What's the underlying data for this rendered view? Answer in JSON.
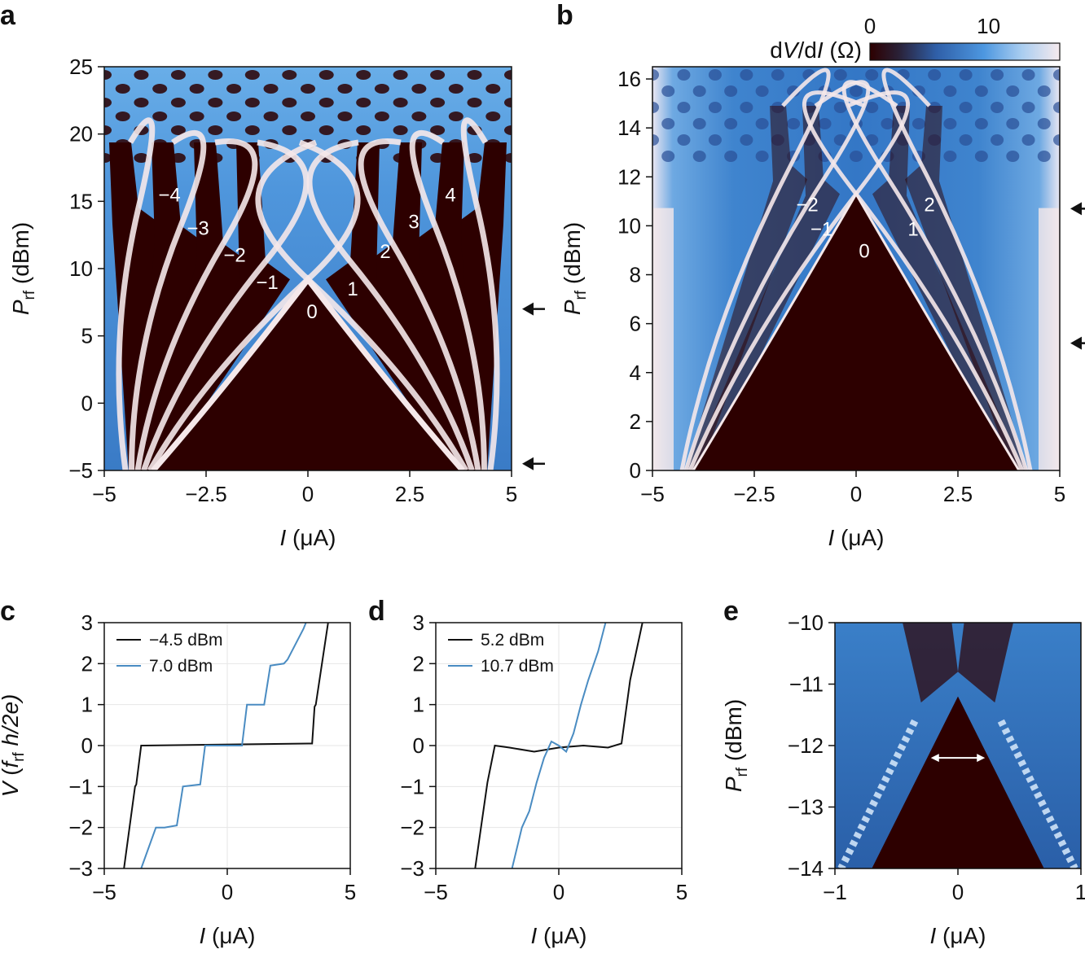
{
  "colors": {
    "dark": "#2d0000",
    "mid": "#3a7fc8",
    "light": "#5fa8e8",
    "white": "#f5e8ea",
    "trace_black": "#111111",
    "trace_blue": "#4a8cc2"
  },
  "chart_data": [
    {
      "id": "a",
      "type": "heatmap",
      "panel_label": "a",
      "xlabel_italic": "I",
      "xlabel_unit": "(μA)",
      "ylabel_main": "P",
      "ylabel_sub": "rf",
      "ylabel_unit": "(dBm)",
      "xlim": [
        -5,
        5
      ],
      "ylim": [
        -5,
        25
      ],
      "xticks": [
        -5,
        -2.5,
        0,
        2.5,
        5
      ],
      "xtick_labels": [
        "−5",
        "−2.5",
        "0",
        "2.5",
        "5"
      ],
      "yticks": [
        -5,
        0,
        5,
        10,
        15,
        20,
        25
      ],
      "ytick_labels": [
        "−5",
        "0",
        "5",
        "10",
        "15",
        "20",
        "25"
      ],
      "zero_step_boundary": {
        "apex": [
          0,
          9.2
        ],
        "base_left": [
          -3.8,
          -5
        ],
        "base_right": [
          3.8,
          -5
        ]
      },
      "step_labels": [
        {
          "text": "−4",
          "x": -3.4,
          "y": 15.0
        },
        {
          "text": "−3",
          "x": -2.7,
          "y": 12.5
        },
        {
          "text": "−2",
          "x": -1.8,
          "y": 10.5
        },
        {
          "text": "−1",
          "x": -1.0,
          "y": 8.5
        },
        {
          "text": "0",
          "x": 0.1,
          "y": 6.3
        },
        {
          "text": "1",
          "x": 1.1,
          "y": 8.0
        },
        {
          "text": "2",
          "x": 1.9,
          "y": 10.8
        },
        {
          "text": "3",
          "x": 2.6,
          "y": 13.0
        },
        {
          "text": "4",
          "x": 3.5,
          "y": 15.0
        }
      ],
      "arrows_at": [
        7.0,
        -4.5
      ]
    },
    {
      "id": "b",
      "type": "heatmap",
      "panel_label": "b",
      "xlabel_italic": "I",
      "xlabel_unit": "(μA)",
      "ylabel_main": "P",
      "ylabel_sub": "rf",
      "ylabel_unit": "(dBm)",
      "xlim": [
        -5,
        5
      ],
      "ylim": [
        0,
        16.5
      ],
      "xticks": [
        -5,
        -2.5,
        0,
        2.5,
        5
      ],
      "xtick_labels": [
        "−5",
        "−2.5",
        "0",
        "2.5",
        "5"
      ],
      "yticks": [
        0,
        2,
        4,
        6,
        8,
        10,
        12,
        14,
        16
      ],
      "ytick_labels": [
        "0",
        "2",
        "4",
        "6",
        "8",
        "10",
        "12",
        "14",
        "16"
      ],
      "zero_step_boundary": {
        "apex": [
          0,
          11.3
        ],
        "base_left": [
          -4.0,
          0
        ],
        "base_right": [
          4.0,
          0
        ]
      },
      "step_labels": [
        {
          "text": "−2",
          "x": -1.2,
          "y": 10.6
        },
        {
          "text": "−1",
          "x": -0.85,
          "y": 9.6
        },
        {
          "text": "0",
          "x": 0.2,
          "y": 8.7
        },
        {
          "text": "1",
          "x": 1.4,
          "y": 9.6
        },
        {
          "text": "2",
          "x": 1.8,
          "y": 10.6
        }
      ],
      "arrows_at": [
        10.7,
        5.2
      ],
      "colorbar": {
        "label_prefix": "d",
        "label_v": "V",
        "label_mid": "/d",
        "label_i": "I",
        "label_unit": "(Ω)",
        "ticks": [
          0,
          10
        ],
        "tick_labels": [
          "0",
          "10"
        ],
        "range": [
          0,
          16
        ]
      }
    },
    {
      "id": "c",
      "type": "line",
      "panel_label": "c",
      "xlabel_italic": "I",
      "xlabel_unit": "(μA)",
      "ylabel_main": "V",
      "ylabel_paren_open": "(",
      "ylabel_f": "f",
      "ylabel_sub": "rf",
      "ylabel_tail": "h/2e)",
      "xlim": [
        -5,
        5
      ],
      "ylim": [
        -3,
        3
      ],
      "xticks": [
        -5,
        0,
        5
      ],
      "xtick_labels": [
        "−5",
        "0",
        "5"
      ],
      "yticks": [
        -3,
        -2,
        -1,
        0,
        1,
        2,
        3
      ],
      "ytick_labels": [
        "−3",
        "−2",
        "−1",
        "0",
        "1",
        "2",
        "3"
      ],
      "series": [
        {
          "name": "−4.5 dBm",
          "color": "#111111",
          "x": [
            -4.2,
            -3.75,
            -3.7,
            -3.5,
            -3.4,
            3.3,
            3.45,
            3.55,
            3.6,
            4.1
          ],
          "y": [
            -3.0,
            -1.0,
            -0.95,
            0.0,
            0.0,
            0.05,
            0.05,
            0.95,
            1.0,
            3.0
          ]
        },
        {
          "name": "7.0 dBm",
          "color": "#4a8cc2",
          "x": [
            -3.5,
            -2.9,
            -2.55,
            -2.05,
            -1.8,
            -1.1,
            -0.9,
            0.6,
            0.8,
            1.5,
            1.75,
            2.3,
            2.45,
            3.1,
            3.2
          ],
          "y": [
            -3.0,
            -2.0,
            -2.0,
            -1.95,
            -1.0,
            -0.95,
            0.0,
            0.0,
            1.0,
            1.0,
            1.95,
            2.0,
            2.1,
            2.85,
            3.0
          ]
        }
      ]
    },
    {
      "id": "d",
      "type": "line",
      "panel_label": "d",
      "xlabel_italic": "I",
      "xlabel_unit": "(μA)",
      "xlim": [
        -5,
        5
      ],
      "ylim": [
        -3,
        3
      ],
      "xticks": [
        -5,
        0,
        5
      ],
      "xtick_labels": [
        "−5",
        "0",
        "5"
      ],
      "yticks": [
        -3,
        -2,
        -1,
        0,
        1,
        2,
        3
      ],
      "ytick_labels": [
        "−3",
        "−2",
        "−1",
        "0",
        "1",
        "2",
        "3"
      ],
      "series": [
        {
          "name": "5.2 dBm",
          "color": "#111111",
          "x": [
            -3.4,
            -2.9,
            -2.6,
            -2.0,
            -1.0,
            0.0,
            1.0,
            2.0,
            2.55,
            2.9,
            3.4
          ],
          "y": [
            -3.0,
            -0.9,
            0.0,
            -0.05,
            -0.15,
            -0.05,
            0.0,
            -0.05,
            0.05,
            1.6,
            3.0
          ]
        },
        {
          "name": "10.7 dBm",
          "color": "#4a8cc2",
          "x": [
            -1.9,
            -1.5,
            -1.2,
            -0.9,
            -0.6,
            -0.3,
            0.0,
            0.3,
            0.6,
            0.9,
            1.2,
            1.6,
            1.9
          ],
          "y": [
            -3.0,
            -2.0,
            -1.6,
            -0.9,
            -0.3,
            0.1,
            0.0,
            -0.15,
            0.3,
            1.0,
            1.6,
            2.3,
            3.0
          ]
        }
      ]
    },
    {
      "id": "e",
      "type": "heatmap",
      "panel_label": "e",
      "xlabel_italic": "I",
      "xlabel_unit": "(μA)",
      "ylabel_main": "P",
      "ylabel_sub": "rf",
      "ylabel_unit": "(dBm)",
      "xlim": [
        -1,
        1
      ],
      "ylim": [
        -14,
        -10
      ],
      "xticks": [
        -1,
        0,
        1
      ],
      "xtick_labels": [
        "−1",
        "0",
        "1"
      ],
      "yticks": [
        -14,
        -13,
        -12,
        -11,
        -10
      ],
      "ytick_labels": [
        "−14",
        "−13",
        "−12",
        "−11",
        "−10"
      ],
      "zero_step_boundary": {
        "apex": [
          0,
          -11.2
        ],
        "base_left": [
          -0.7,
          -14
        ],
        "base_right": [
          0.7,
          -14
        ]
      },
      "double_arrow": {
        "x_from": -0.22,
        "x_to": 0.22,
        "y": -12.2
      }
    }
  ]
}
